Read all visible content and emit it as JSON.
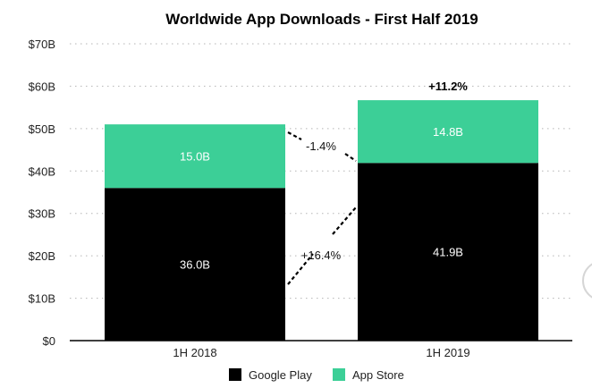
{
  "chart_data": {
    "type": "bar",
    "stacked": true,
    "title": "Worldwide App Downloads - First Half 2019",
    "categories": [
      "1H 2018",
      "1H 2019"
    ],
    "series": [
      {
        "name": "Google Play",
        "values": [
          36.0,
          41.9
        ],
        "labels": [
          "36.0B",
          "41.9B"
        ],
        "color": "#000000",
        "label_color": "#ffffff"
      },
      {
        "name": "App Store",
        "values": [
          15.0,
          14.8
        ],
        "labels": [
          "15.0B",
          "14.8B"
        ],
        "color": "#3ccf97",
        "label_color": "#ffffff"
      }
    ],
    "ylim": [
      0,
      70
    ],
    "yticks": [
      0,
      10,
      20,
      30,
      40,
      50,
      60,
      70
    ],
    "ytick_labels": [
      "$0",
      "$10B",
      "$20B",
      "$30B",
      "$40B",
      "$50B",
      "$60B",
      "$70B"
    ],
    "grid": true,
    "legend": "bottom-center",
    "annotations": {
      "total_change": "+11.2%",
      "app_store_change": "-1.4%",
      "google_play_change": "+16.4%"
    }
  }
}
